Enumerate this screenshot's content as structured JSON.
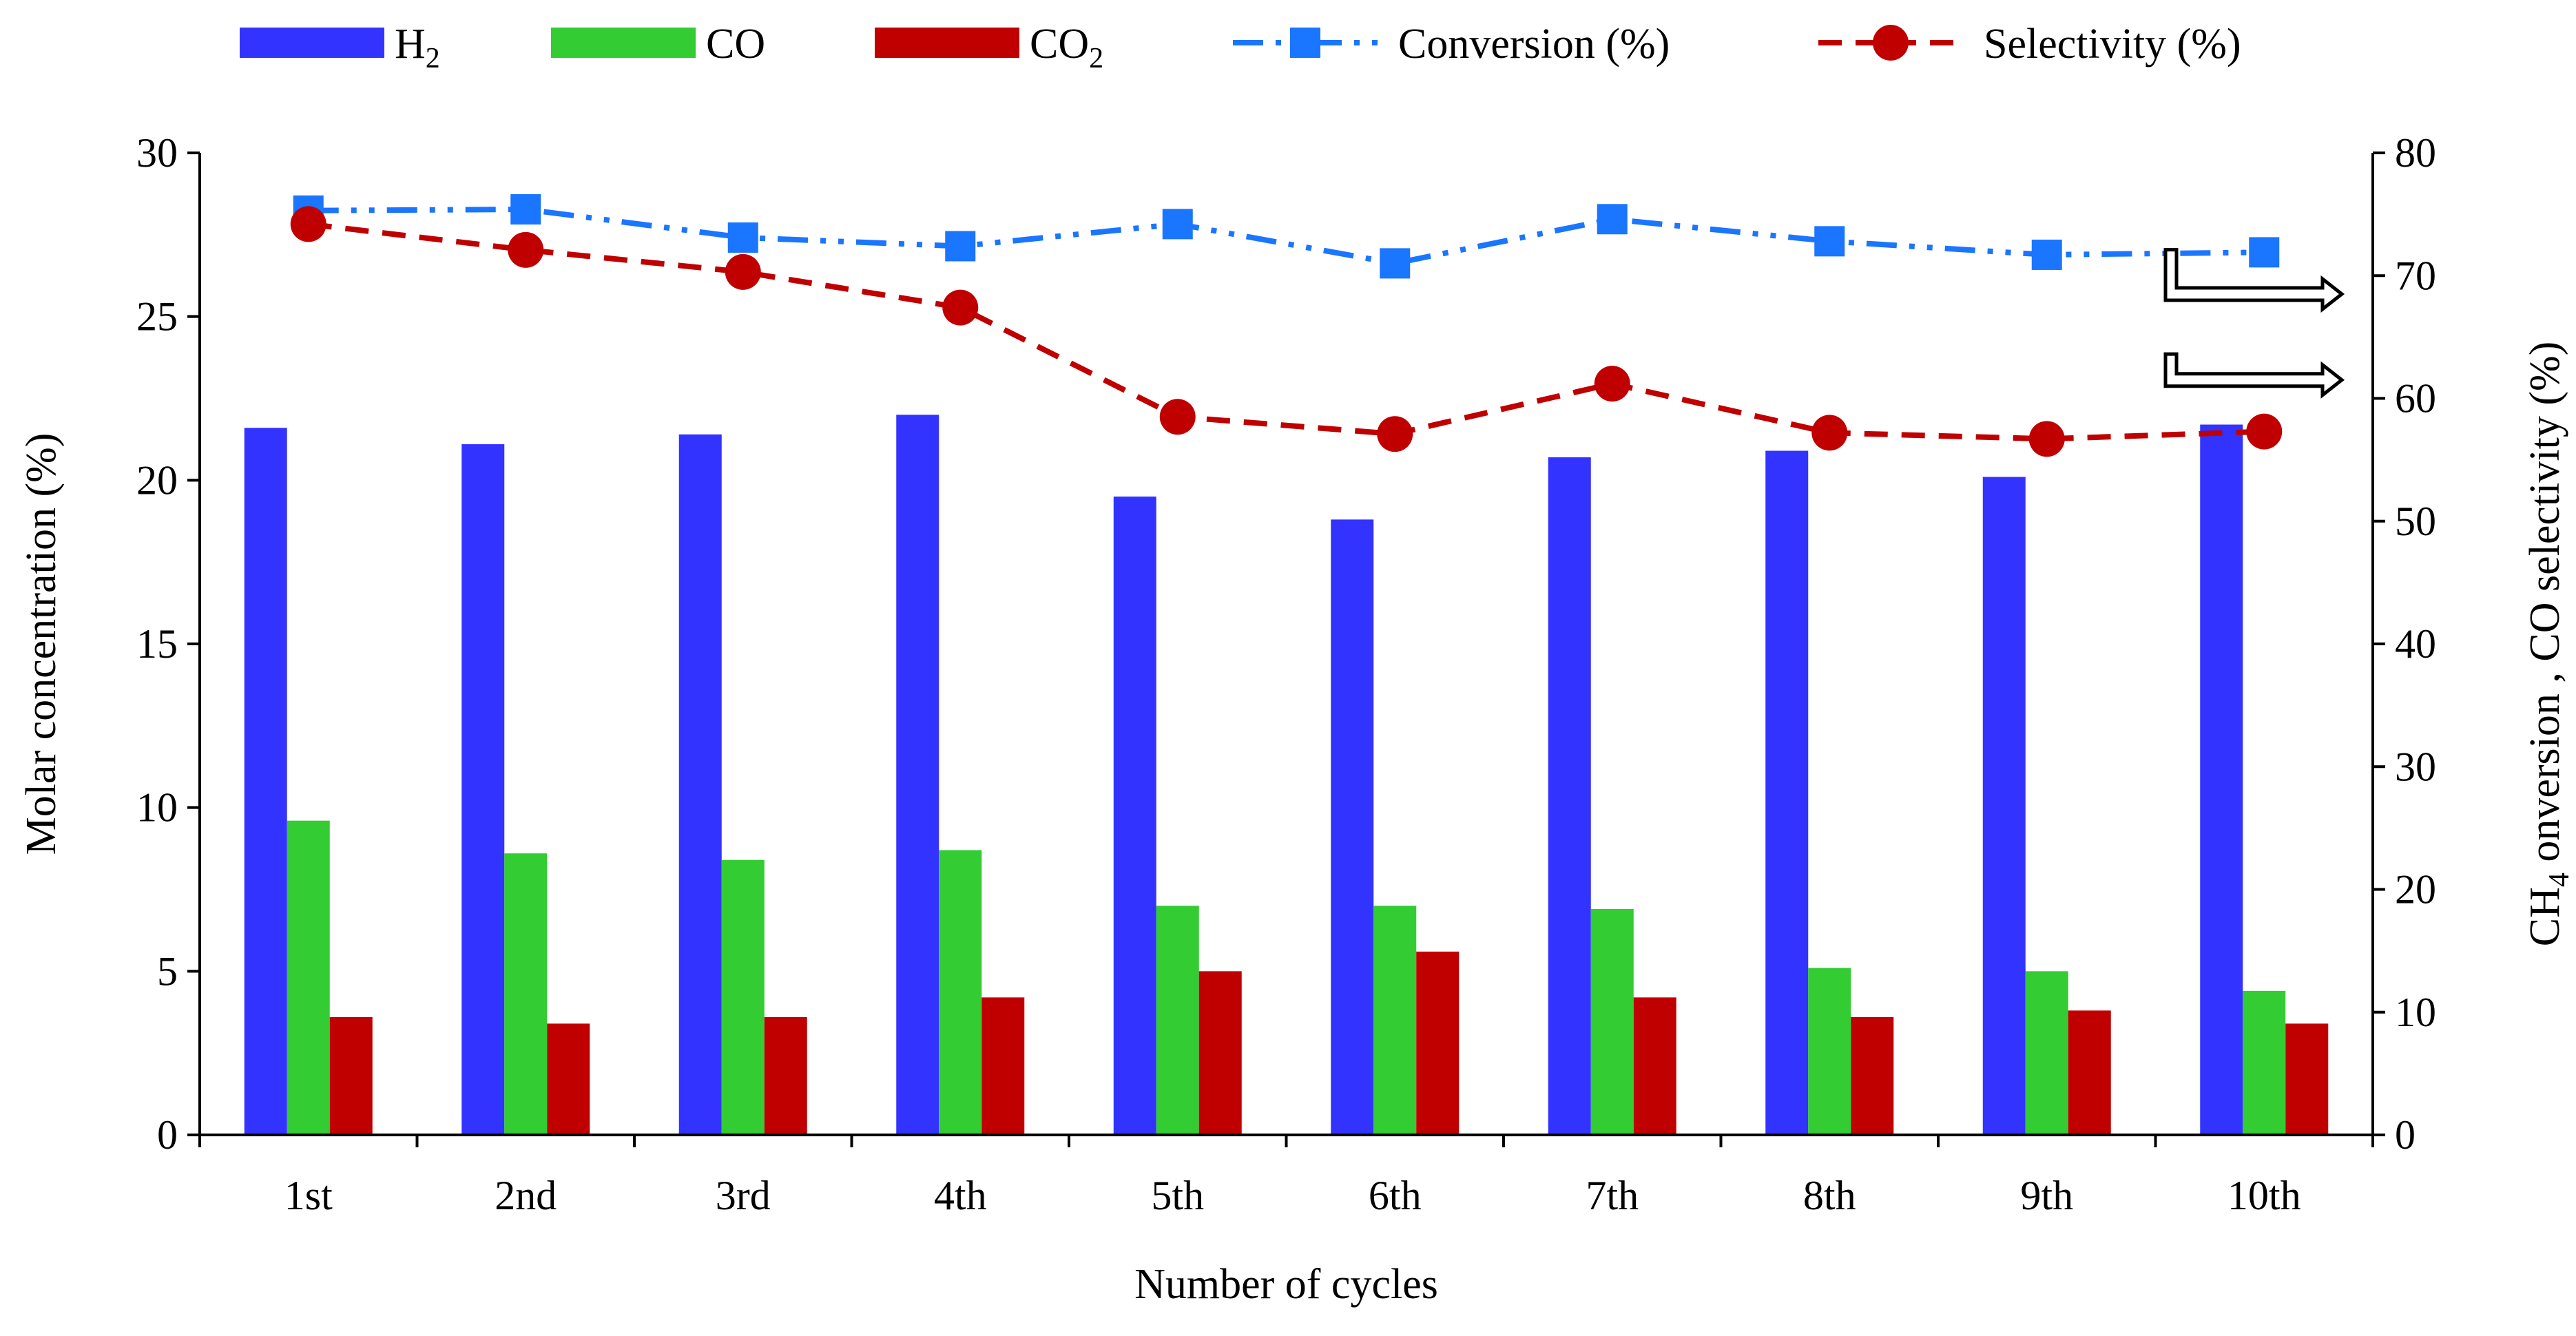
{
  "chart_data": {
    "type": "bar",
    "categories": [
      "1st",
      "2nd",
      "3rd",
      "4th",
      "5th",
      "6th",
      "7th",
      "8th",
      "9th",
      "10th"
    ],
    "xlabel": "Number of cycles",
    "ylabel": "Molar concentration (%)",
    "ylim": [
      0,
      30
    ],
    "yticks": [
      0,
      5,
      10,
      15,
      20,
      25,
      30
    ],
    "y2label": {
      "prefix": "CH",
      "sub": "4",
      "suffix": " onversion , CO selectivity (%)"
    },
    "y2lim": [
      0,
      80
    ],
    "y2ticks": [
      0,
      10,
      20,
      30,
      40,
      50,
      60,
      70,
      80
    ],
    "series": [
      {
        "name": "H2",
        "label_main": "H",
        "label_sub": "2",
        "kind": "bar",
        "axis": "left",
        "color": "#3333ff",
        "values": [
          21.6,
          21.1,
          21.4,
          22.0,
          19.5,
          18.8,
          20.7,
          20.9,
          20.1,
          21.7
        ]
      },
      {
        "name": "CO",
        "label_main": "CO",
        "label_sub": "",
        "kind": "bar",
        "axis": "left",
        "color": "#33cc33",
        "values": [
          9.6,
          8.6,
          8.4,
          8.7,
          7.0,
          7.0,
          6.9,
          5.1,
          5.0,
          4.4
        ]
      },
      {
        "name": "CO2",
        "label_main": "CO",
        "label_sub": "2",
        "kind": "bar",
        "axis": "left",
        "color": "#c00000",
        "values": [
          3.6,
          3.4,
          3.6,
          4.2,
          5.0,
          5.6,
          4.2,
          3.6,
          3.8,
          3.4
        ]
      },
      {
        "name": "Conversion (%)",
        "label_main": "Conversion (%)",
        "label_sub": "",
        "kind": "line",
        "axis": "right",
        "color": "#1a75ff",
        "marker": "square",
        "dash": "dashdotdot",
        "values": [
          75.3,
          75.4,
          73.1,
          72.4,
          74.2,
          71.0,
          74.6,
          72.8,
          71.7,
          71.9
        ]
      },
      {
        "name": "Selectivity (%)",
        "label_main": "Selectivity (%)",
        "label_sub": "",
        "kind": "line",
        "axis": "right",
        "color": "#c00000",
        "marker": "circle",
        "dash": "dashed",
        "values": [
          74.2,
          72.1,
          70.3,
          67.4,
          58.5,
          57.1,
          61.2,
          57.2,
          56.7,
          57.3
        ]
      }
    ],
    "legend_position": "top",
    "grid": false
  }
}
